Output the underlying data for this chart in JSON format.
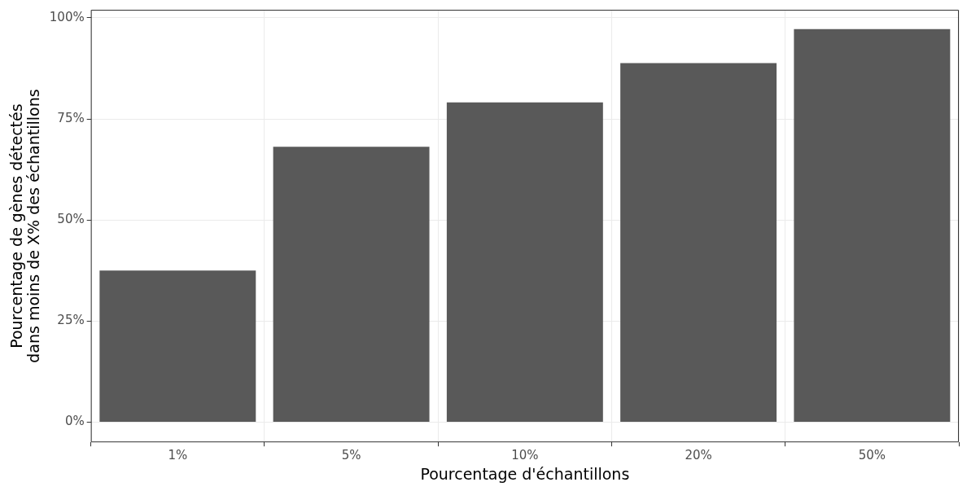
{
  "chart_data": {
    "type": "bar",
    "xlabel": "Pourcentage d'échantillons",
    "ylabel": "Pourcentage de gènes détectés\ndans moins de X% des échantillons",
    "categories": [
      "1%",
      "5%",
      "10%",
      "20%",
      "50%"
    ],
    "values": [
      37.5,
      68.1,
      79.1,
      88.8,
      97.2
    ],
    "color": "#595959",
    "ylim": [
      -5,
      102
    ],
    "yticks": [
      {
        "value": 0,
        "label": "0%"
      },
      {
        "value": 25,
        "label": "25%"
      },
      {
        "value": 50,
        "label": "50%"
      },
      {
        "value": 75,
        "label": "75%"
      },
      {
        "value": 100,
        "label": "100%"
      }
    ],
    "grid": true,
    "legend": false
  }
}
